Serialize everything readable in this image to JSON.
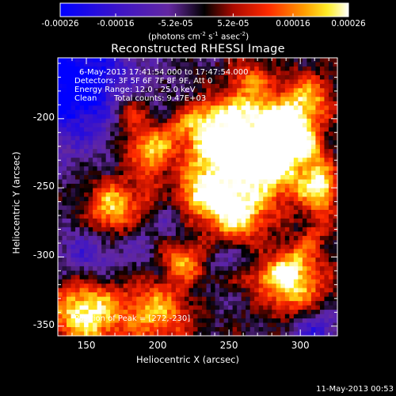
{
  "chart_data": {
    "type": "heatmap",
    "title": "Reconstructed RHESSI Image",
    "xlabel": "Heliocentric X (arcsec)",
    "ylabel": "Heliocentric Y (arcsec)",
    "xlim": [
      130,
      326
    ],
    "ylim": [
      -357,
      -156
    ],
    "x_ticks": [
      150,
      200,
      250,
      300
    ],
    "y_ticks": [
      -200,
      -250,
      -300,
      -350
    ],
    "colorbar": {
      "range": [
        -0.00026,
        0.00026
      ],
      "tick_labels": [
        "-0.00026",
        "-0.00016",
        "-5.2e-05",
        "5.2e-05",
        "0.00016",
        "0.00026"
      ],
      "tick_values": [
        -0.00026,
        -0.00016,
        -5.2e-05,
        5.2e-05,
        0.00016,
        0.00026
      ],
      "units_label": "(photons cm",
      "units_exp1": "-2",
      "units_mid": " s",
      "units_exp2": "-1",
      "units_mid2": " asec",
      "units_exp3": "-2",
      "units_end": ")"
    },
    "peak": {
      "x": 272,
      "y": -230
    },
    "grid": false
  },
  "annotations": {
    "time_range": "6-May-2013 17:41:54.000 to 17:47:54.000",
    "detectors": "Detectors: 3F 5F 6F 7F 8F 9F, Att 0",
    "energy": "Energy Range: 12.0 - 25.0 keV",
    "method": "Clean",
    "counts": "Total counts: 9.47E+03",
    "peak_text": "Position of Peak = [272,-230]"
  },
  "footer_date": "11-May-2013 00:53",
  "colors": {
    "background": "#000000",
    "text": "#ffffff",
    "colormap": "blue-purple-black-red-yellow-white"
  }
}
